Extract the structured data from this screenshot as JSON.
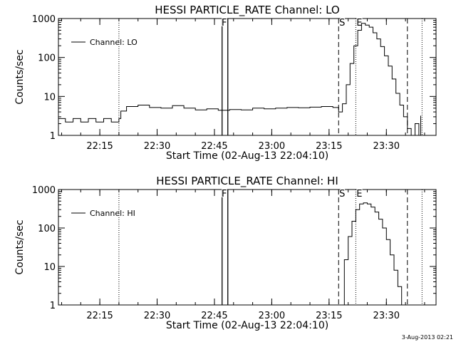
{
  "timestamp": "3-Aug-2013 02:21",
  "chart_data": [
    {
      "type": "line",
      "title": "HESSI PARTICLE_RATE Channel: LO",
      "xlabel": "Start Time (02-Aug-13 22:04:10)",
      "ylabel": "Counts/sec",
      "yscale": "log",
      "ylim": [
        1,
        1000
      ],
      "xlim": [
        "22:04:10",
        "23:43:00"
      ],
      "x_ticks": [
        "22:15",
        "22:30",
        "22:45",
        "23:00",
        "23:15",
        "23:30"
      ],
      "y_ticks": [
        "1",
        "10",
        "100",
        "1000"
      ],
      "legend": {
        "position": "top-left",
        "label": "Channel: LO"
      },
      "markers": [
        {
          "label": "",
          "time": "22:20:00",
          "style": "dotted"
        },
        {
          "label": "F",
          "time": "22:47:00",
          "style": "solid-band",
          "end": "22:48:30"
        },
        {
          "label": "S",
          "time": "23:17:30",
          "style": "dashed"
        },
        {
          "label": "E",
          "time": "23:22:00",
          "style": "dotted"
        },
        {
          "label": "",
          "time": "23:35:30",
          "style": "dashed"
        },
        {
          "label": "",
          "time": "23:39:20",
          "style": "dotted"
        }
      ],
      "series": [
        {
          "x": [
            "22:04:10",
            "22:06:00",
            "22:08:00",
            "22:10:00",
            "22:12:00",
            "22:14:00",
            "22:16:00",
            "22:18:00",
            "22:20:00",
            "22:20:30",
            "22:22:00",
            "22:25:00",
            "22:28:00",
            "22:31:00",
            "22:34:00",
            "22:37:00",
            "22:40:00",
            "22:43:00",
            "22:46:00",
            "22:49:00",
            "22:52:00",
            "22:55:00",
            "22:58:00",
            "23:01:00",
            "23:04:00",
            "23:07:00",
            "23:10:00",
            "23:13:00",
            "23:16:00",
            "23:17:30",
            "23:18:30",
            "23:19:30",
            "23:20:30",
            "23:21:30",
            "23:22:30",
            "23:23:30",
            "23:24:30",
            "23:25:30",
            "23:26:30",
            "23:27:30",
            "23:28:30",
            "23:29:30",
            "23:30:30",
            "23:31:30",
            "23:32:30",
            "23:33:30",
            "23:34:30",
            "23:35:30",
            "23:36:30",
            "23:37:30",
            "23:38:30",
            "23:39:00"
          ],
          "y": [
            2.7,
            2.2,
            2.7,
            2.2,
            2.7,
            2.2,
            2.7,
            2.2,
            2.7,
            4.2,
            5.5,
            6.0,
            5.2,
            5.0,
            5.8,
            5.0,
            4.5,
            4.8,
            4.4,
            4.6,
            4.5,
            5.0,
            4.8,
            5.0,
            5.2,
            5.1,
            5.3,
            5.5,
            5.2,
            4.0,
            6.5,
            20,
            70,
            200,
            500,
            750,
            680,
            600,
            430,
            300,
            190,
            110,
            60,
            28,
            12,
            6,
            3,
            1.5,
            1.0,
            2.0,
            1.0,
            3.2
          ]
        }
      ]
    },
    {
      "type": "line",
      "title": "HESSI PARTICLE_RATE Channel: HI",
      "xlabel": "Start Time (02-Aug-13 22:04:10)",
      "ylabel": "Counts/sec",
      "yscale": "log",
      "ylim": [
        1,
        1000
      ],
      "xlim": [
        "22:04:10",
        "23:43:00"
      ],
      "x_ticks": [
        "22:15",
        "22:30",
        "22:45",
        "23:00",
        "23:15",
        "23:30"
      ],
      "y_ticks": [
        "1",
        "10",
        "100",
        "1000"
      ],
      "legend": {
        "position": "top-left",
        "label": "Channel: HI"
      },
      "markers": [
        {
          "label": "",
          "time": "22:20:00",
          "style": "dotted"
        },
        {
          "label": "F",
          "time": "22:47:00",
          "style": "solid-band",
          "end": "22:48:30"
        },
        {
          "label": "S",
          "time": "23:17:30",
          "style": "dashed"
        },
        {
          "label": "E",
          "time": "23:22:00",
          "style": "dotted"
        },
        {
          "label": "",
          "time": "23:35:30",
          "style": "dashed"
        },
        {
          "label": "",
          "time": "23:39:20",
          "style": "dotted"
        }
      ],
      "series": [
        {
          "x": [
            "23:18:10",
            "23:19:00",
            "23:20:00",
            "23:21:00",
            "23:22:00",
            "23:23:00",
            "23:24:00",
            "23:25:00",
            "23:26:00",
            "23:27:00",
            "23:28:00",
            "23:29:00",
            "23:30:00",
            "23:31:00",
            "23:32:00",
            "23:33:00",
            "23:34:00"
          ],
          "y": [
            1.0,
            15,
            60,
            150,
            300,
            420,
            450,
            420,
            350,
            260,
            170,
            100,
            50,
            20,
            8,
            3,
            1.0
          ]
        }
      ]
    }
  ]
}
